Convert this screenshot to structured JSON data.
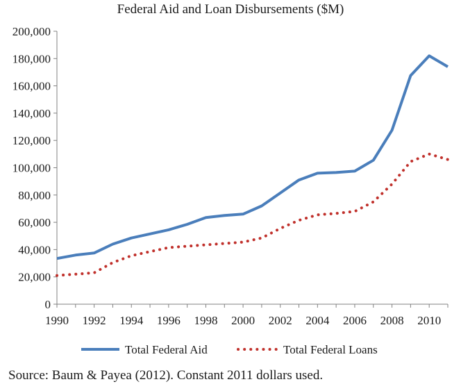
{
  "chart_data": {
    "type": "line",
    "title": "Federal Aid and Loan Disbursements ($M)",
    "xlabel": "",
    "ylabel": "",
    "x": [
      1990,
      1991,
      1992,
      1993,
      1994,
      1995,
      1996,
      1997,
      1998,
      1999,
      2000,
      2001,
      2002,
      2003,
      2004,
      2005,
      2006,
      2007,
      2008,
      2009,
      2010,
      2011
    ],
    "xticks": [
      "1990",
      "1992",
      "1994",
      "1996",
      "1998",
      "2000",
      "2002",
      "2004",
      "2006",
      "2008",
      "2010"
    ],
    "xlim": [
      1990,
      2011
    ],
    "ylim": [
      0,
      200000
    ],
    "yticks": [
      "0",
      "20,000",
      "40,000",
      "60,000",
      "80,000",
      "100,000",
      "120,000",
      "140,000",
      "160,000",
      "180,000",
      "200,000"
    ],
    "grid": false,
    "legend_position": "bottom",
    "series": [
      {
        "name": "Total Federal Aid",
        "style": "solid",
        "color": "#4a7ebb",
        "values": [
          33500,
          36000,
          37500,
          44000,
          48500,
          51500,
          54500,
          58500,
          63500,
          65000,
          66000,
          72000,
          81500,
          91000,
          96000,
          96500,
          97500,
          105500,
          127500,
          167500,
          182000,
          174000
        ]
      },
      {
        "name": "Total Federal Loans",
        "style": "dotted",
        "color": "#c0302b",
        "values": [
          21000,
          22000,
          23000,
          30500,
          35500,
          38500,
          41500,
          42500,
          43500,
          44500,
          45500,
          48500,
          55500,
          61500,
          65500,
          66500,
          68000,
          75000,
          88000,
          104500,
          110000,
          106000
        ]
      }
    ]
  },
  "source_note": "Source: Baum & Payea (2012). Constant 2011 dollars used."
}
